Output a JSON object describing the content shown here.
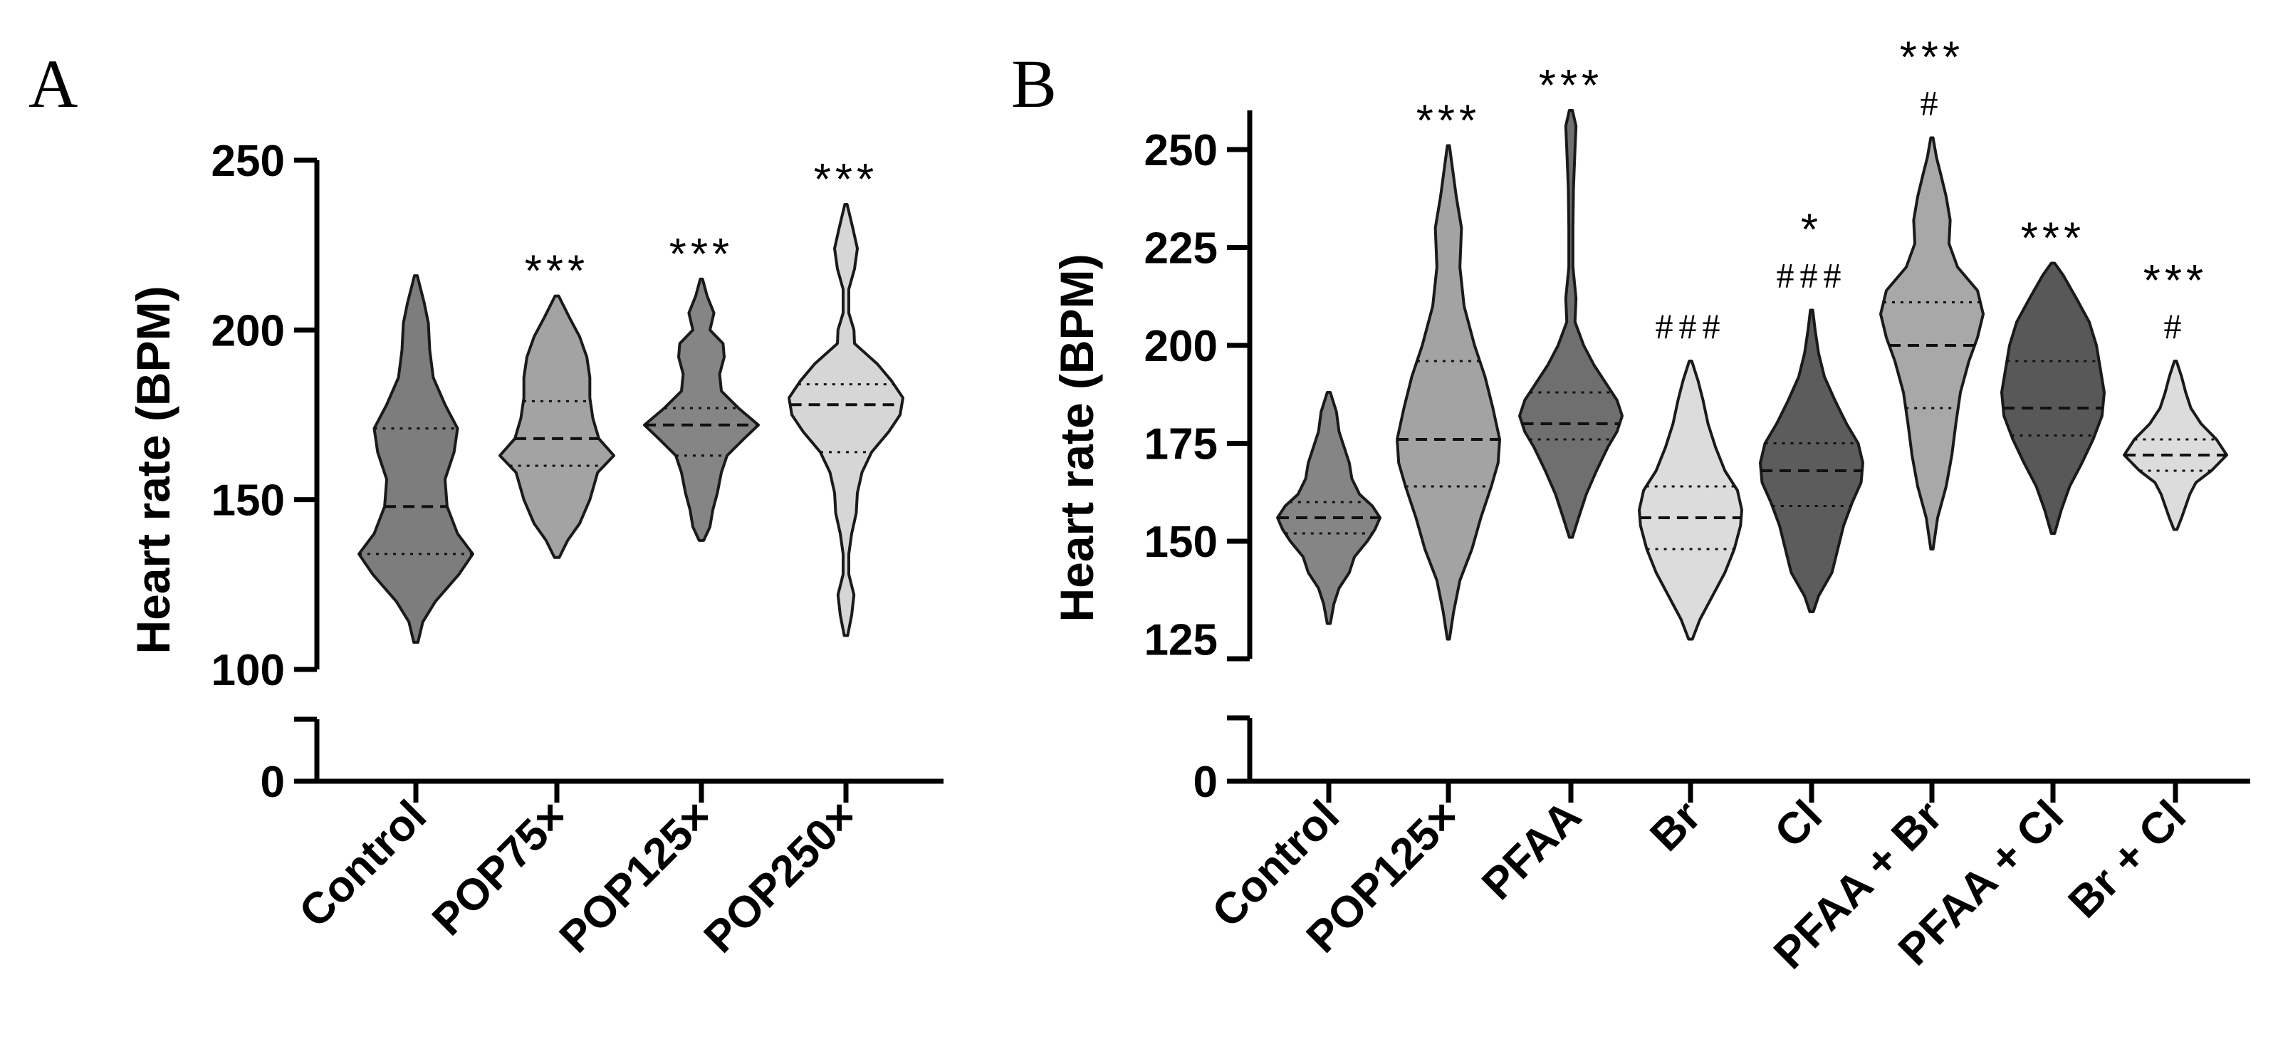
{
  "chart_data": [
    {
      "type": "violin",
      "panel": "A",
      "ylabel": "Heart rate (BPM)",
      "ylim_broken": [
        [
          0,
          0
        ],
        [
          100,
          250
        ]
      ],
      "yticks": [
        0,
        100,
        150,
        200,
        250
      ],
      "categories": [
        "Control",
        "POP75×",
        "POP125×",
        "POP250×"
      ],
      "colors": [
        "#7d7d7d",
        "#a3a3a3",
        "#858585",
        "#d6d6d6"
      ],
      "violins": [
        {
          "name": "Control",
          "min": 108,
          "max": 216,
          "median": 148,
          "q1": 134,
          "q3": 171,
          "significance": "",
          "hash": "",
          "profile": [
            [
              108,
              0.03
            ],
            [
              114,
              0.1
            ],
            [
              120,
              0.28
            ],
            [
              128,
              0.62
            ],
            [
              134,
              0.82
            ],
            [
              140,
              0.6
            ],
            [
              148,
              0.45
            ],
            [
              156,
              0.42
            ],
            [
              164,
              0.55
            ],
            [
              171,
              0.6
            ],
            [
              178,
              0.42
            ],
            [
              186,
              0.25
            ],
            [
              194,
              0.2
            ],
            [
              202,
              0.18
            ],
            [
              208,
              0.12
            ],
            [
              216,
              0.02
            ]
          ]
        },
        {
          "name": "POP75×",
          "min": 133,
          "max": 210,
          "median": 168,
          "q1": 160,
          "q3": 179,
          "significance": "***",
          "hash": "",
          "profile": [
            [
              133,
              0.04
            ],
            [
              138,
              0.18
            ],
            [
              143,
              0.38
            ],
            [
              150,
              0.55
            ],
            [
              158,
              0.68
            ],
            [
              163,
              0.95
            ],
            [
              168,
              0.7
            ],
            [
              174,
              0.6
            ],
            [
              180,
              0.55
            ],
            [
              186,
              0.55
            ],
            [
              192,
              0.5
            ],
            [
              198,
              0.38
            ],
            [
              204,
              0.2
            ],
            [
              210,
              0.03
            ]
          ]
        },
        {
          "name": "POP125×",
          "min": 138,
          "max": 215,
          "median": 172,
          "q1": 163,
          "q3": 177,
          "significance": "***",
          "hash": "",
          "profile": [
            [
              138,
              0.04
            ],
            [
              142,
              0.15
            ],
            [
              147,
              0.2
            ],
            [
              152,
              0.28
            ],
            [
              158,
              0.35
            ],
            [
              163,
              0.45
            ],
            [
              168,
              0.75
            ],
            [
              172,
              1.0
            ],
            [
              177,
              0.65
            ],
            [
              182,
              0.35
            ],
            [
              187,
              0.32
            ],
            [
              192,
              0.4
            ],
            [
              196,
              0.38
            ],
            [
              200,
              0.15
            ],
            [
              205,
              0.22
            ],
            [
              210,
              0.1
            ],
            [
              215,
              0.02
            ]
          ]
        },
        {
          "name": "POP250×",
          "min": 110,
          "max": 237,
          "median": 178,
          "q1": 164,
          "q3": 184,
          "significance": "***",
          "hash": "",
          "profile": [
            [
              110,
              0.03
            ],
            [
              116,
              0.1
            ],
            [
              122,
              0.14
            ],
            [
              128,
              0.05
            ],
            [
              134,
              0.05
            ],
            [
              140,
              0.1
            ],
            [
              146,
              0.18
            ],
            [
              152,
              0.2
            ],
            [
              158,
              0.28
            ],
            [
              164,
              0.45
            ],
            [
              170,
              0.75
            ],
            [
              175,
              0.95
            ],
            [
              180,
              1.0
            ],
            [
              185,
              0.8
            ],
            [
              190,
              0.55
            ],
            [
              196,
              0.15
            ],
            [
              200,
              0.14
            ],
            [
              205,
              0.05
            ],
            [
              212,
              0.05
            ],
            [
              218,
              0.15
            ],
            [
              224,
              0.2
            ],
            [
              230,
              0.12
            ],
            [
              237,
              0.02
            ]
          ]
        }
      ]
    },
    {
      "type": "violin",
      "panel": "B",
      "ylabel": "Heart rate (BPM)",
      "ylim_broken": [
        [
          0,
          0
        ],
        [
          120,
          260
        ]
      ],
      "yticks": [
        0,
        125,
        150,
        175,
        200,
        225,
        250
      ],
      "categories": [
        "Control",
        "POP125×",
        "PFAA",
        "Br",
        "Cl",
        "PFAA + Br",
        "PFAA + Cl",
        "Br + Cl"
      ],
      "colors": [
        "#858585",
        "#a3a3a3",
        "#6f6f6f",
        "#dcdcdc",
        "#5c5c5c",
        "#a8a8a8",
        "#585858",
        "#dcdcdc"
      ],
      "violins": [
        {
          "name": "Control",
          "min": 129,
          "max": 188,
          "median": 156,
          "q1": 152,
          "q3": 160,
          "significance": "",
          "hash": "",
          "profile": [
            [
              129,
              0.03
            ],
            [
              134,
              0.1
            ],
            [
              138,
              0.2
            ],
            [
              142,
              0.4
            ],
            [
              146,
              0.5
            ],
            [
              150,
              0.75
            ],
            [
              153,
              0.9
            ],
            [
              156,
              1.0
            ],
            [
              159,
              0.85
            ],
            [
              162,
              0.6
            ],
            [
              166,
              0.45
            ],
            [
              170,
              0.4
            ],
            [
              174,
              0.3
            ],
            [
              178,
              0.2
            ],
            [
              183,
              0.15
            ],
            [
              188,
              0.03
            ]
          ]
        },
        {
          "name": "POP125×",
          "min": 125,
          "max": 251,
          "median": 176,
          "q1": 164,
          "q3": 196,
          "significance": "***",
          "hash": "",
          "profile": [
            [
              125,
              0.02
            ],
            [
              132,
              0.1
            ],
            [
              140,
              0.22
            ],
            [
              148,
              0.45
            ],
            [
              156,
              0.62
            ],
            [
              164,
              0.82
            ],
            [
              170,
              0.95
            ],
            [
              176,
              0.98
            ],
            [
              184,
              0.85
            ],
            [
              192,
              0.7
            ],
            [
              200,
              0.5
            ],
            [
              210,
              0.3
            ],
            [
              220,
              0.22
            ],
            [
              230,
              0.25
            ],
            [
              238,
              0.15
            ],
            [
              245,
              0.08
            ],
            [
              251,
              0.02
            ]
          ]
        },
        {
          "name": "PFAA",
          "min": 151,
          "max": 260,
          "median": 180,
          "q1": 176,
          "q3": 188,
          "significance": "***",
          "hash": "",
          "profile": [
            [
              151,
              0.03
            ],
            [
              156,
              0.15
            ],
            [
              162,
              0.3
            ],
            [
              168,
              0.5
            ],
            [
              174,
              0.72
            ],
            [
              178,
              0.9
            ],
            [
              182,
              1.0
            ],
            [
              186,
              0.9
            ],
            [
              190,
              0.7
            ],
            [
              195,
              0.45
            ],
            [
              200,
              0.25
            ],
            [
              206,
              0.08
            ],
            [
              212,
              0.1
            ],
            [
              220,
              0.04
            ],
            [
              230,
              0.04
            ],
            [
              240,
              0.05
            ],
            [
              250,
              0.08
            ],
            [
              256,
              0.1
            ],
            [
              260,
              0.03
            ]
          ]
        },
        {
          "name": "Br",
          "min": 125,
          "max": 196,
          "median": 156,
          "q1": 148,
          "q3": 164,
          "significance": "",
          "hash": "###",
          "profile": [
            [
              125,
              0.03
            ],
            [
              130,
              0.15
            ],
            [
              136,
              0.35
            ],
            [
              142,
              0.55
            ],
            [
              148,
              0.7
            ],
            [
              154,
              0.8
            ],
            [
              158,
              0.82
            ],
            [
              163,
              0.75
            ],
            [
              168,
              0.55
            ],
            [
              174,
              0.4
            ],
            [
              180,
              0.28
            ],
            [
              186,
              0.2
            ],
            [
              191,
              0.12
            ],
            [
              196,
              0.02
            ]
          ]
        },
        {
          "name": "Cl",
          "min": 132,
          "max": 209,
          "median": 168,
          "q1": 159,
          "q3": 175,
          "significance": "*",
          "hash": "###",
          "profile": [
            [
              132,
              0.03
            ],
            [
              136,
              0.12
            ],
            [
              142,
              0.35
            ],
            [
              148,
              0.45
            ],
            [
              154,
              0.55
            ],
            [
              160,
              0.7
            ],
            [
              165,
              0.85
            ],
            [
              170,
              0.88
            ],
            [
              175,
              0.8
            ],
            [
              180,
              0.6
            ],
            [
              186,
              0.4
            ],
            [
              192,
              0.22
            ],
            [
              198,
              0.12
            ],
            [
              204,
              0.06
            ],
            [
              209,
              0.02
            ]
          ]
        },
        {
          "name": "PFAA + Br",
          "min": 148,
          "max": 253,
          "median": 200,
          "q1": 184,
          "q3": 211,
          "significance": "***",
          "hash": "#",
          "profile": [
            [
              148,
              0.02
            ],
            [
              156,
              0.1
            ],
            [
              164,
              0.25
            ],
            [
              172,
              0.35
            ],
            [
              180,
              0.42
            ],
            [
              188,
              0.5
            ],
            [
              196,
              0.65
            ],
            [
              202,
              0.8
            ],
            [
              208,
              0.9
            ],
            [
              214,
              0.8
            ],
            [
              220,
              0.45
            ],
            [
              226,
              0.3
            ],
            [
              232,
              0.32
            ],
            [
              238,
              0.25
            ],
            [
              244,
              0.15
            ],
            [
              248,
              0.08
            ],
            [
              253,
              0.02
            ]
          ]
        },
        {
          "name": "PFAA + Cl",
          "min": 152,
          "max": 221,
          "median": 184,
          "q1": 177,
          "q3": 196,
          "significance": "***",
          "hash": "",
          "profile": [
            [
              152,
              0.03
            ],
            [
              158,
              0.15
            ],
            [
              164,
              0.3
            ],
            [
              170,
              0.52
            ],
            [
              176,
              0.72
            ],
            [
              182,
              0.88
            ],
            [
              188,
              0.92
            ],
            [
              194,
              0.85
            ],
            [
              200,
              0.78
            ],
            [
              206,
              0.65
            ],
            [
              212,
              0.42
            ],
            [
              218,
              0.18
            ],
            [
              221,
              0.03
            ]
          ]
        },
        {
          "name": "Br + Cl",
          "min": 153,
          "max": 196,
          "median": 172,
          "q1": 168,
          "q3": 176,
          "significance": "***",
          "hash": "#",
          "profile": [
            [
              153,
              0.03
            ],
            [
              156,
              0.12
            ],
            [
              159,
              0.2
            ],
            [
              162,
              0.28
            ],
            [
              165,
              0.4
            ],
            [
              168,
              0.7
            ],
            [
              172,
              1.0
            ],
            [
              176,
              0.8
            ],
            [
              180,
              0.5
            ],
            [
              184,
              0.3
            ],
            [
              188,
              0.2
            ],
            [
              192,
              0.12
            ],
            [
              196,
              0.02
            ]
          ]
        }
      ]
    }
  ],
  "panels": [
    {
      "letter": "A",
      "ylabel": "Heart rate (BPM)",
      "tick_labels": [
        "0",
        "100",
        "150",
        "200",
        "250"
      ],
      "categories": [
        "Control",
        "POP75×",
        "POP125×",
        "POP250×"
      ],
      "sig": [
        "",
        "***",
        "***",
        "***"
      ],
      "hash": [
        "",
        "",
        "",
        ""
      ]
    },
    {
      "letter": "B",
      "ylabel": "Heart rate (BPM)",
      "tick_labels": [
        "0",
        "125",
        "150",
        "175",
        "200",
        "225",
        "250"
      ],
      "categories": [
        "Control",
        "POP125×",
        "PFAA",
        "Br",
        "Cl",
        "PFAA + Br",
        "PFAA + Cl",
        "Br + Cl"
      ],
      "sig": [
        "",
        "***",
        "***",
        "",
        "*",
        "***",
        "***",
        "***"
      ],
      "hash": [
        "",
        "",
        "",
        "###",
        "###",
        "#",
        "",
        "#"
      ]
    }
  ]
}
